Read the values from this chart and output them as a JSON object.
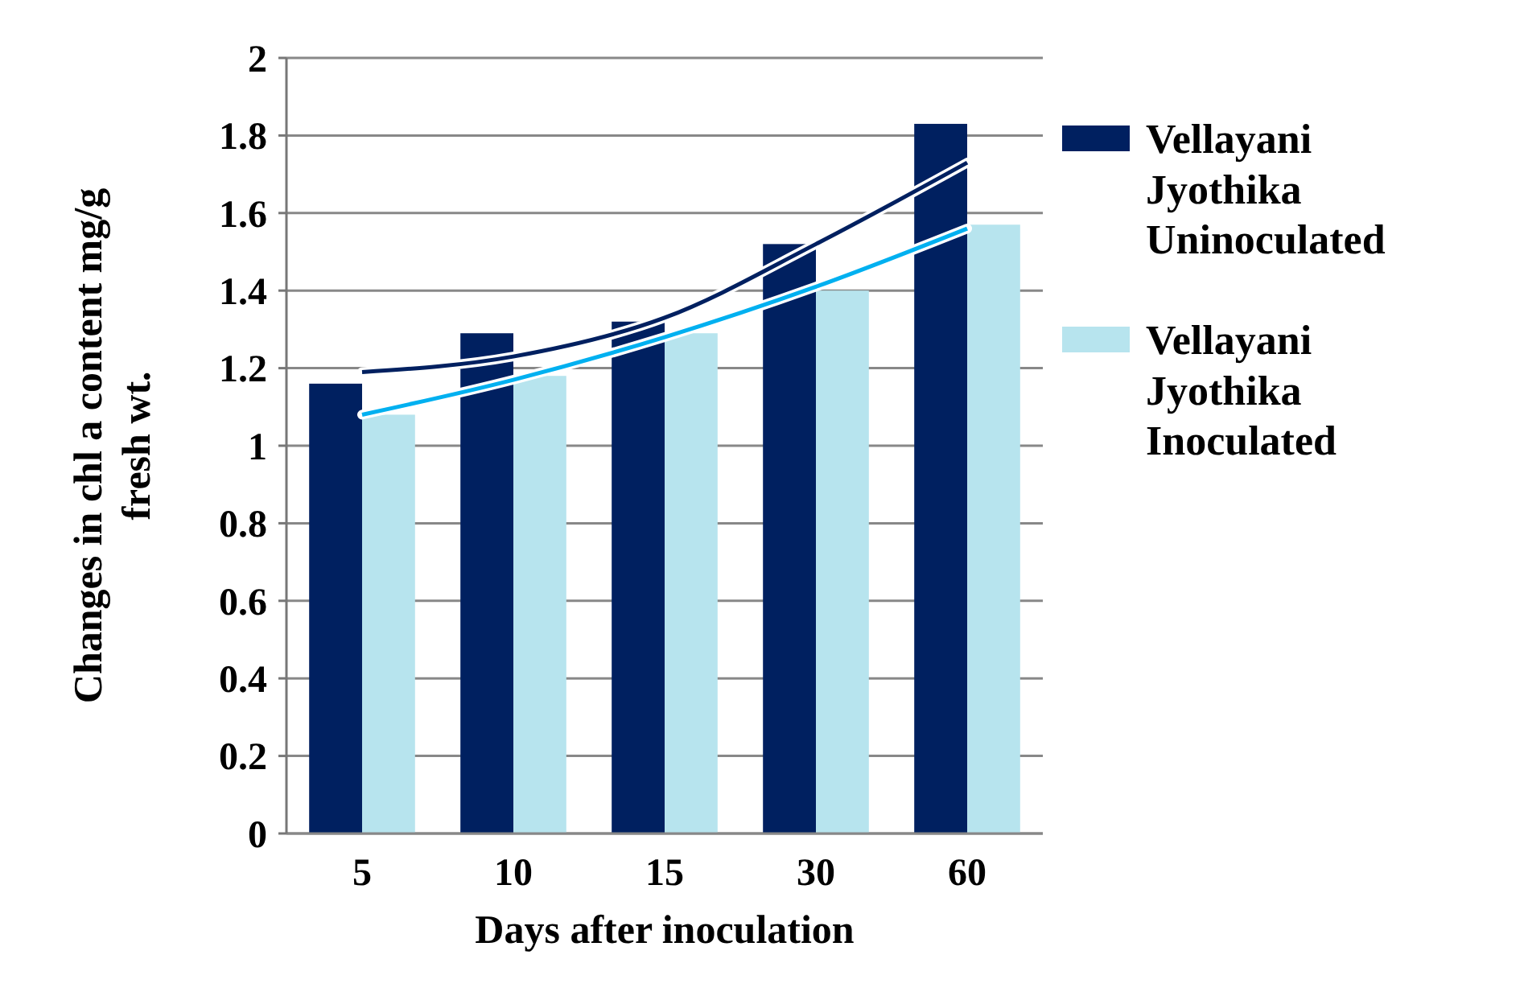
{
  "chart_data": {
    "type": "bar",
    "xlabel": "Days after inoculation",
    "ylabel": "Changes in chl a content mg/g fresh wt.",
    "categories": [
      "5",
      "10",
      "15",
      "30",
      "60"
    ],
    "series": [
      {
        "name": "Vellayani Jyothika Uninoculated",
        "color": "#002060",
        "values": [
          1.16,
          1.29,
          1.32,
          1.52,
          1.83
        ]
      },
      {
        "name": "Vellayani Jyothika Inoculated",
        "color": "#b7e4ee",
        "values": [
          1.08,
          1.18,
          1.29,
          1.4,
          1.57
        ]
      },
      {
        "type": "line",
        "color": "#002060",
        "values": [
          1.19,
          1.23,
          1.33,
          1.52,
          1.73
        ]
      },
      {
        "type": "line",
        "color": "#00b0f0",
        "values": [
          1.08,
          1.17,
          1.28,
          1.41,
          1.56
        ]
      }
    ],
    "ylim": [
      0,
      2
    ],
    "yticks": [
      0,
      0.2,
      0.4,
      0.6,
      0.8,
      1,
      1.2,
      1.4,
      1.6,
      1.8,
      2
    ],
    "grid": "y",
    "legend": "right"
  }
}
